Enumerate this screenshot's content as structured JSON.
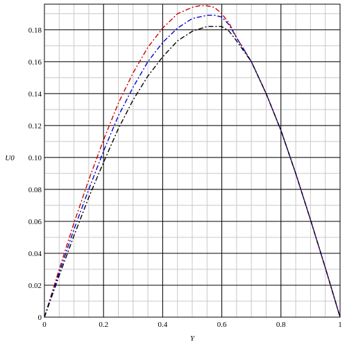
{
  "chart_data": {
    "type": "line",
    "title": "",
    "xlabel": "Y",
    "ylabel": "U0",
    "xlim": [
      0,
      1
    ],
    "ylim": [
      0,
      0.196
    ],
    "grid": true,
    "major_grid_color": "#000000",
    "minor_grid_color": "#c8c8c8",
    "x_major_ticks": [
      0,
      0.2,
      0.4,
      0.6,
      0.8,
      1
    ],
    "x_tick_labels": [
      "0",
      "0.2",
      "0.4",
      "0.6",
      "0.8",
      "1"
    ],
    "y_major_ticks": [
      0,
      0.02,
      0.04,
      0.06,
      0.08,
      0.1,
      0.12,
      0.14,
      0.16,
      0.18
    ],
    "y_tick_labels": [
      "0",
      "0.02",
      "0.04",
      "0.06",
      "0.08",
      "0.10",
      "0.12",
      "0.14",
      "0.16",
      "0.18"
    ],
    "x_minor_step": 0.05,
    "y_minor_step": 0.01,
    "series": [
      {
        "color": "#cc0000",
        "dash": "dashdot",
        "x": [
          0,
          0.05,
          0.1,
          0.15,
          0.2,
          0.25,
          0.3,
          0.35,
          0.4,
          0.45,
          0.5,
          0.525,
          0.55,
          0.575,
          0.6,
          0.625,
          0.65,
          0.7,
          0.75,
          0.8,
          0.85,
          0.9,
          0.95,
          1.0
        ],
        "y": [
          0,
          0.03,
          0.059,
          0.086,
          0.111,
          0.134,
          0.153,
          0.169,
          0.181,
          0.19,
          0.194,
          0.195,
          0.195,
          0.194,
          0.19,
          0.184,
          0.175,
          0.16,
          0.14,
          0.117,
          0.09,
          0.061,
          0.031,
          0
        ]
      },
      {
        "color": "#0000cc",
        "dash": "dashdot",
        "x": [
          0,
          0.05,
          0.1,
          0.15,
          0.2,
          0.25,
          0.3,
          0.35,
          0.4,
          0.45,
          0.5,
          0.55,
          0.575,
          0.6,
          0.625,
          0.65,
          0.7,
          0.75,
          0.8,
          0.85,
          0.9,
          0.95,
          1.0
        ],
        "y": [
          0,
          0.028,
          0.055,
          0.08,
          0.104,
          0.126,
          0.144,
          0.16,
          0.172,
          0.181,
          0.187,
          0.189,
          0.189,
          0.188,
          0.183,
          0.175,
          0.16,
          0.14,
          0.117,
          0.09,
          0.061,
          0.031,
          0
        ]
      },
      {
        "color": "#000000",
        "dash": "dashdot",
        "x": [
          0,
          0.05,
          0.1,
          0.15,
          0.2,
          0.25,
          0.3,
          0.35,
          0.4,
          0.45,
          0.5,
          0.55,
          0.575,
          0.6,
          0.625,
          0.65,
          0.7,
          0.75,
          0.8,
          0.85,
          0.9,
          0.95,
          1.0
        ],
        "y": [
          0,
          0.026,
          0.051,
          0.075,
          0.097,
          0.118,
          0.136,
          0.151,
          0.163,
          0.173,
          0.179,
          0.182,
          0.182,
          0.182,
          0.179,
          0.173,
          0.16,
          0.14,
          0.117,
          0.09,
          0.061,
          0.031,
          0
        ]
      }
    ]
  }
}
